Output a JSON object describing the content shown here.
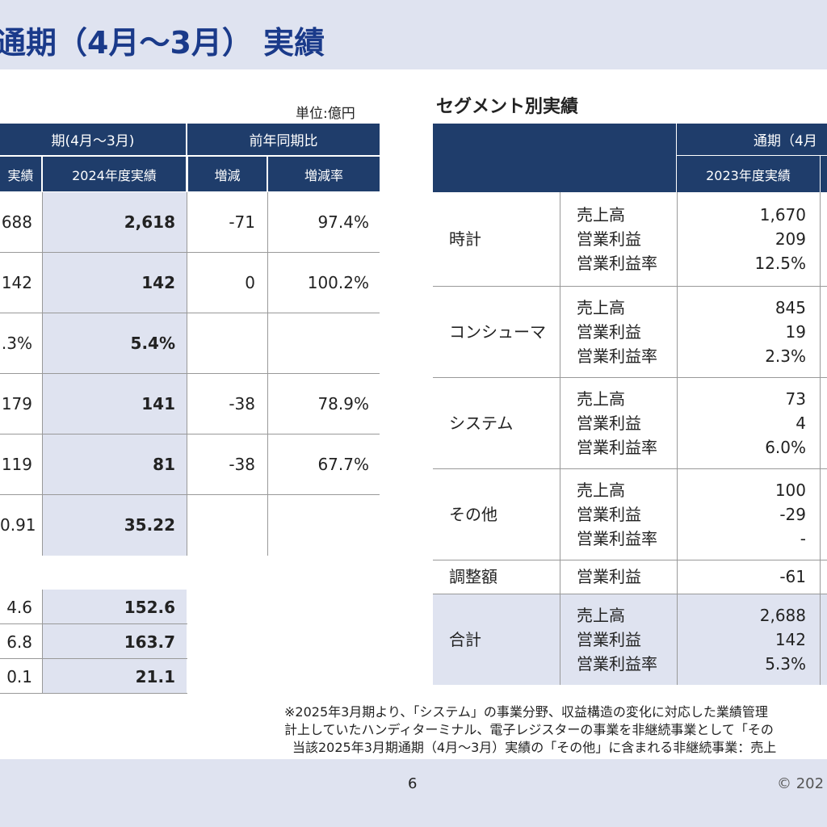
{
  "header": {
    "title": "通期（4月～3月） 実績"
  },
  "left_table": {
    "unit": "単位:億円",
    "header_period": "期(4月～3月)",
    "header_yoy": "前年同期比",
    "columns": [
      "実績",
      "2024年度実績",
      "増減",
      "増減率"
    ],
    "rows": [
      [
        "688",
        "2,618",
        "-71",
        "97.4%"
      ],
      [
        "142",
        "142",
        "0",
        "100.2%"
      ],
      [
        ".3%",
        "5.4%"
      ],
      [
        "179",
        "141",
        "-38",
        "78.9%"
      ],
      [
        "119",
        "81",
        "-38",
        "67.7%"
      ],
      [
        "0.91",
        "35.22"
      ]
    ]
  },
  "left_sub_table": {
    "rows": [
      [
        "4.6",
        "152.6"
      ],
      [
        "6.8",
        "163.7"
      ],
      [
        "0.1",
        "21.1"
      ]
    ]
  },
  "segment_table": {
    "title": "セグメント別実績",
    "header_period": "通期（4月",
    "columns": [
      "2023年度実績"
    ],
    "segments": [
      {
        "name": "時計",
        "items": [
          "売上高",
          "営業利益",
          "営業利益率"
        ],
        "values": [
          "1,670",
          "209",
          "12.5%"
        ]
      },
      {
        "name": "コンシューマ",
        "items": [
          "売上高",
          "営業利益",
          "営業利益率"
        ],
        "values": [
          "845",
          "19",
          "2.3%"
        ]
      },
      {
        "name": "システム",
        "items": [
          "売上高",
          "営業利益",
          "営業利益率"
        ],
        "values": [
          "73",
          "4",
          "6.0%"
        ]
      },
      {
        "name": "その他",
        "items": [
          "売上高",
          "営業利益",
          "営業利益率"
        ],
        "values": [
          "100",
          "-29",
          "-"
        ]
      },
      {
        "name": "調整額",
        "items": [
          "営業利益"
        ],
        "values": [
          "-61"
        ]
      },
      {
        "name": "合計",
        "items": [
          "売上高",
          "営業利益",
          "営業利益率"
        ],
        "values": [
          "2,688",
          "142",
          "5.3%"
        ]
      }
    ]
  },
  "notes": [
    "※2025年3月期より、「システム」の事業分野、収益構造の変化に対応した業績管理",
    "計上していたハンディターミナル、電子レジスターの事業を非継続事業として「その",
    "当該2025年3月期通期（4月～3月）実績の「その他」に含まれる非継続事業：売上"
  ],
  "footer": {
    "page": "6",
    "copyright": "© 202"
  }
}
